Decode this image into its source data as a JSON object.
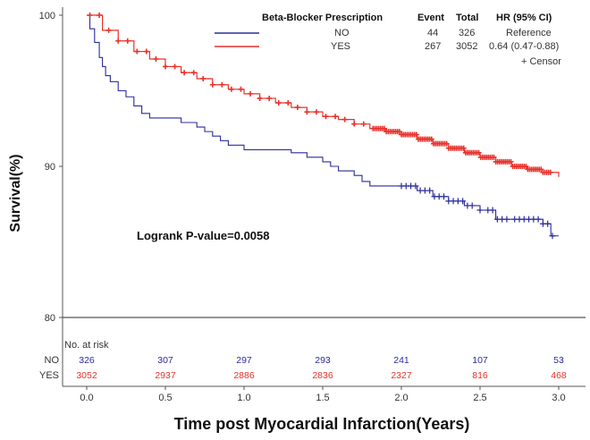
{
  "chart_data": {
    "type": "line",
    "subtype": "kaplan-meier",
    "xlabel": "Time post Myocardial Infarction(Years)",
    "ylabel": "Survival(%)",
    "xlim": [
      0,
      3
    ],
    "ylim": [
      80,
      100
    ],
    "x_ticks": [
      "0.0",
      "0.5",
      "1.0",
      "1.5",
      "2.0",
      "2.5",
      "3.0"
    ],
    "y_ticks": [
      "80",
      "90",
      "100"
    ],
    "grid": false,
    "legend": {
      "position": "top-right",
      "headers": [
        "Beta-Blocker Prescription",
        "Event",
        "Total",
        "HR (95% CI)"
      ],
      "rows": [
        {
          "name": "NO",
          "event": "44",
          "total": "326",
          "hr": "Reference",
          "color": "#2b2b9e"
        },
        {
          "name": "YES",
          "event": "267",
          "total": "3052",
          "hr": "0.64 (0.47-0.88)",
          "color": "#e8322c"
        }
      ],
      "censor_note": "+ Censor"
    },
    "annotation": "Logrank P-value=0.0058",
    "series": [
      {
        "name": "NO",
        "color": "#2b2b9e",
        "x": [
          0,
          0.02,
          0.05,
          0.08,
          0.1,
          0.12,
          0.15,
          0.2,
          0.25,
          0.3,
          0.35,
          0.4,
          0.45,
          0.5,
          0.6,
          0.7,
          0.75,
          0.8,
          0.85,
          0.9,
          1.0,
          1.1,
          1.2,
          1.3,
          1.4,
          1.5,
          1.55,
          1.6,
          1.7,
          1.75,
          1.8,
          2.0,
          2.05,
          2.1,
          2.2,
          2.3,
          2.4,
          2.5,
          2.55,
          2.6,
          2.7,
          2.8,
          2.9,
          2.95,
          3.0
        ],
        "y": [
          100,
          99.1,
          98.2,
          97.2,
          96.6,
          96.0,
          95.6,
          95.0,
          94.6,
          94.0,
          93.5,
          93.2,
          93.2,
          93.2,
          92.9,
          92.6,
          92.3,
          92.0,
          91.7,
          91.4,
          91.1,
          91.1,
          91.1,
          90.9,
          90.6,
          90.3,
          90.0,
          89.7,
          89.4,
          89.0,
          88.7,
          88.7,
          88.7,
          88.4,
          88.0,
          87.7,
          87.4,
          87.1,
          87.1,
          86.5,
          86.5,
          86.5,
          86.2,
          85.4,
          85.4
        ],
        "censors_x": [
          2.0,
          2.03,
          2.06,
          2.09,
          2.12,
          2.15,
          2.18,
          2.21,
          2.24,
          2.27,
          2.3,
          2.33,
          2.36,
          2.39,
          2.42,
          2.45,
          2.5,
          2.55,
          2.58,
          2.61,
          2.64,
          2.67,
          2.72,
          2.75,
          2.78,
          2.81,
          2.84,
          2.87,
          2.9,
          2.93,
          2.96
        ]
      },
      {
        "name": "YES",
        "color": "#e8322c",
        "x": [
          0,
          0.1,
          0.2,
          0.3,
          0.4,
          0.5,
          0.6,
          0.7,
          0.8,
          0.9,
          1.0,
          1.1,
          1.2,
          1.3,
          1.4,
          1.5,
          1.6,
          1.7,
          1.8,
          1.9,
          2.0,
          2.1,
          2.2,
          2.3,
          2.4,
          2.5,
          2.6,
          2.7,
          2.8,
          2.9,
          3.0
        ],
        "y": [
          100,
          99.0,
          98.3,
          97.6,
          97.1,
          96.6,
          96.2,
          95.8,
          95.4,
          95.1,
          94.8,
          94.5,
          94.2,
          93.9,
          93.6,
          93.3,
          93.1,
          92.8,
          92.5,
          92.3,
          92.1,
          91.8,
          91.5,
          91.2,
          90.9,
          90.6,
          90.3,
          90.0,
          89.8,
          89.6,
          89.3
        ]
      }
    ],
    "risk_table": {
      "title": "No. at risk",
      "times": [
        0,
        0.5,
        1,
        1.5,
        2,
        2.5,
        3
      ],
      "rows": [
        {
          "group": "NO",
          "color": "#2b2b9e",
          "values": [
            "326",
            "307",
            "297",
            "293",
            "241",
            "107",
            "53"
          ]
        },
        {
          "group": "YES",
          "color": "#e8322c",
          "values": [
            "3052",
            "2937",
            "2886",
            "2836",
            "2327",
            "816",
            "468"
          ]
        }
      ]
    }
  }
}
